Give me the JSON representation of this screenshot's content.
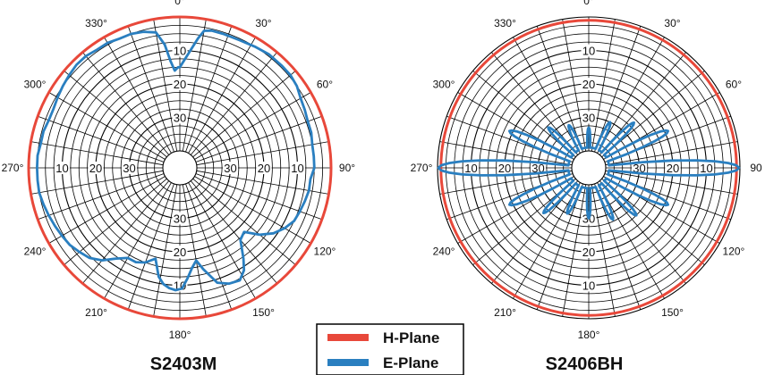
{
  "chart_data": [
    {
      "type": "polar",
      "title": "S2403M",
      "angle_labels": [
        "0°",
        "30°",
        "60°",
        "90°",
        "120°",
        "150°",
        "180°",
        "210°",
        "240°",
        "270°",
        "300°",
        "330°"
      ],
      "radial_tick_labels": [
        "10",
        "20",
        "30"
      ],
      "radial_unit": "dB below peak (0 at outer ring, 40 at center)",
      "radial_range": [
        0,
        40
      ],
      "angle_direction": "clockwise from top",
      "series": [
        {
          "name": "H-Plane",
          "color": "#e8483a",
          "angles_deg": [
            0,
            90,
            180,
            270
          ],
          "values_db": [
            0,
            0,
            0,
            0
          ]
        },
        {
          "name": "E-Plane",
          "color": "#2a7fc0",
          "angles_deg": [
            0,
            5,
            8,
            10,
            13,
            18,
            25,
            32,
            38,
            45,
            50,
            55,
            60,
            65,
            70,
            75,
            80,
            85,
            90,
            95,
            100,
            105,
            110,
            115,
            120,
            125,
            130,
            135,
            140,
            145,
            148,
            152,
            157,
            162,
            167,
            170,
            173,
            176,
            179,
            182,
            185,
            188,
            191,
            195,
            200,
            205,
            210,
            215,
            220,
            225,
            230,
            235,
            240,
            245,
            250,
            255,
            260,
            265,
            270,
            275,
            280,
            285,
            290,
            295,
            300,
            305,
            310,
            315,
            320,
            325,
            330,
            335,
            340,
            345,
            350,
            353,
            355,
            357,
            359
          ],
          "values_db": [
            15,
            10,
            6,
            3.5,
            3,
            3,
            3,
            2.5,
            2,
            2,
            2,
            2.5,
            3.5,
            4,
            4.5,
            4.5,
            5,
            5,
            5,
            6,
            6,
            6.5,
            7,
            7.5,
            9,
            11,
            14,
            18,
            17,
            12,
            9,
            7,
            7.5,
            9,
            14,
            17,
            15,
            12,
            9,
            8.5,
            9,
            10,
            12,
            17,
            15,
            14,
            14,
            12,
            9,
            7,
            6,
            5,
            4.5,
            4,
            3.5,
            3,
            2.5,
            2.5,
            2.5,
            2.5,
            3,
            3,
            3.5,
            3.5,
            3,
            2.5,
            2,
            1.5,
            1.5,
            2,
            2,
            2.5,
            2.5,
            3,
            4,
            8,
            13,
            16,
            15
          ]
        }
      ]
    },
    {
      "type": "polar",
      "title": "S2406BH",
      "angle_labels": [
        "0°",
        "30°",
        "60°",
        "90",
        "120°",
        "150°",
        "180°",
        "210°",
        "240°",
        "270°",
        "300°",
        "330°"
      ],
      "radial_tick_labels": [
        "10",
        "20",
        "30"
      ],
      "radial_unit": "dB below peak (0 at outer ring, 40 at center)",
      "radial_range": [
        0,
        40
      ],
      "angle_direction": "clockwise from top",
      "series": [
        {
          "name": "H-Plane",
          "color": "#e8483a",
          "angles_deg": [
            0,
            90,
            180,
            270
          ],
          "values_db": [
            1,
            1,
            1,
            1
          ]
        },
        {
          "name": "E-Plane",
          "color": "#2a7fc0",
          "lobes": [
            {
              "center_deg": 90,
              "peak_db": 0.3,
              "halfwidth_deg": 7
            },
            {
              "center_deg": 270,
              "peak_db": 0.3,
              "halfwidth_deg": 7
            },
            {
              "center_deg": 65,
              "peak_db": 19,
              "halfwidth_deg": 6
            },
            {
              "center_deg": 115,
              "peak_db": 19,
              "halfwidth_deg": 6
            },
            {
              "center_deg": 245,
              "peak_db": 19,
              "halfwidth_deg": 6
            },
            {
              "center_deg": 295,
              "peak_db": 19,
              "halfwidth_deg": 6
            },
            {
              "center_deg": 45,
              "peak_db": 26,
              "halfwidth_deg": 5
            },
            {
              "center_deg": 135,
              "peak_db": 25,
              "halfwidth_deg": 5
            },
            {
              "center_deg": 225,
              "peak_db": 26,
              "halfwidth_deg": 5
            },
            {
              "center_deg": 315,
              "peak_db": 28,
              "halfwidth_deg": 5
            },
            {
              "center_deg": 25,
              "peak_db": 30,
              "halfwidth_deg": 5
            },
            {
              "center_deg": 155,
              "peak_db": 28,
              "halfwidth_deg": 5
            },
            {
              "center_deg": 205,
              "peak_db": 30,
              "halfwidth_deg": 5
            },
            {
              "center_deg": 335,
              "peak_db": 31,
              "halfwidth_deg": 5
            },
            {
              "center_deg": 0,
              "peak_db": 33,
              "halfwidth_deg": 4
            },
            {
              "center_deg": 180,
              "peak_db": 30,
              "halfwidth_deg": 4
            }
          ]
        }
      ]
    }
  ],
  "legend": {
    "items": [
      {
        "label": "H-Plane",
        "color": "#e8483a"
      },
      {
        "label": "E-Plane",
        "color": "#2a7fc0"
      }
    ]
  }
}
